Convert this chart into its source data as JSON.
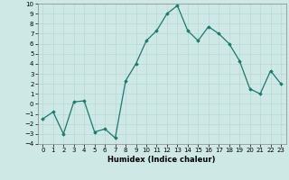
{
  "x": [
    0,
    1,
    2,
    3,
    4,
    5,
    6,
    7,
    8,
    9,
    10,
    11,
    12,
    13,
    14,
    15,
    16,
    17,
    18,
    19,
    20,
    21,
    22,
    23
  ],
  "y": [
    -1.5,
    -0.8,
    -3.0,
    0.2,
    0.3,
    -2.8,
    -2.5,
    -3.4,
    2.3,
    4.0,
    6.3,
    7.3,
    9.0,
    9.8,
    7.3,
    6.3,
    7.7,
    7.0,
    6.0,
    4.3,
    1.5,
    1.0,
    3.3,
    2.0
  ],
  "line_color": "#1a7a6e",
  "marker": "D",
  "markersize": 1.8,
  "linewidth": 0.9,
  "xlabel": "Humidex (Indice chaleur)",
  "xlabel_fontsize": 6,
  "xlim": [
    -0.5,
    23.5
  ],
  "ylim": [
    -4,
    10
  ],
  "yticks": [
    -4,
    -3,
    -2,
    -1,
    0,
    1,
    2,
    3,
    4,
    5,
    6,
    7,
    8,
    9,
    10
  ],
  "xticks": [
    0,
    1,
    2,
    3,
    4,
    5,
    6,
    7,
    8,
    9,
    10,
    11,
    12,
    13,
    14,
    15,
    16,
    17,
    18,
    19,
    20,
    21,
    22,
    23
  ],
  "tick_fontsize": 5,
  "bg_color": "#cde8e5",
  "grid_color": "#b8d8d4"
}
